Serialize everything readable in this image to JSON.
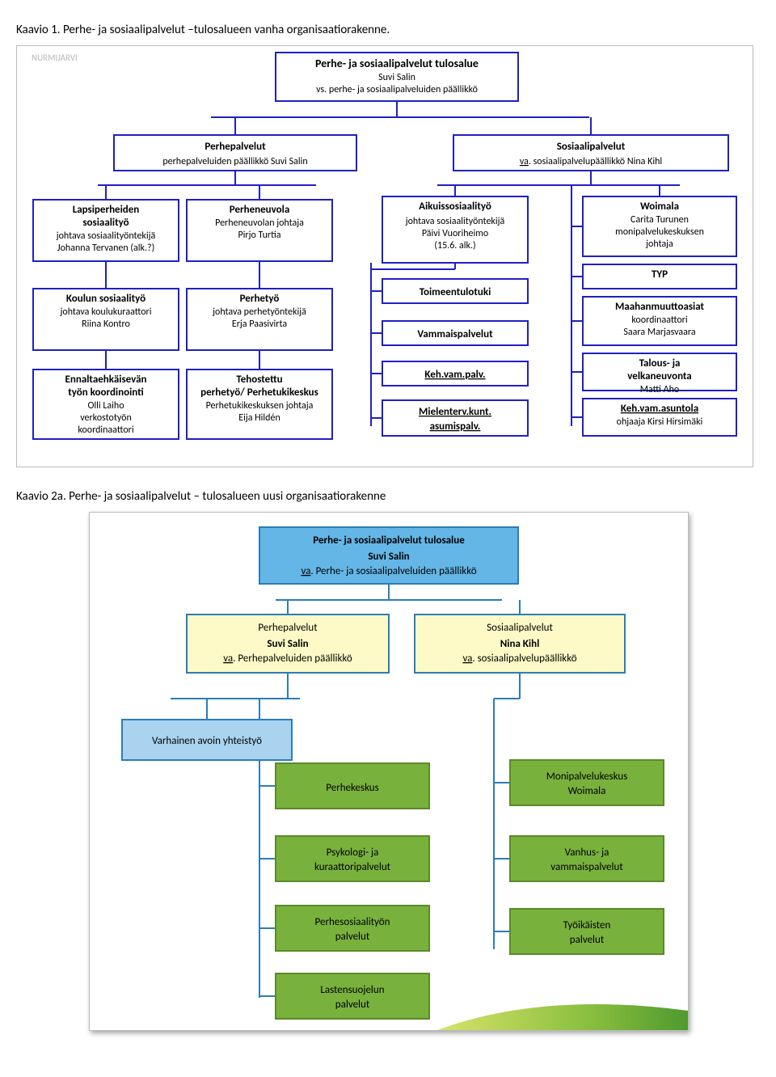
{
  "caption1": "Kaavio 1. Perhe- ja sosiaalipalvelut –tulosalueen vanha organisaatiorakenne.",
  "caption2": "Kaavio 2a. Perhe- ja sosiaalipalvelut – tulosalueen uusi organisaatiorakenne",
  "chart1": {
    "colors": {
      "border": "#2020c0",
      "fill": "#ffffff",
      "text": "#000000",
      "line": "#2020c0",
      "outerBorder": "#bbbbbb"
    },
    "fontsize": {
      "title": 14,
      "heading": 13,
      "body": 12
    },
    "corner_text": "NURMIJARVI",
    "root": {
      "title": "Perhe- ja sosiaalipalvelut tulosalue",
      "line2": "Suvi Salin",
      "line3": "vs. perhe- ja sosiaalipalveluiden päällikkö"
    },
    "level2": [
      {
        "title": "Perhepalvelut",
        "line2": "perhepalveluiden päällikkö Suvi Salin"
      },
      {
        "title": "Sosiaalipalvelut",
        "line2_pre": "va",
        "line2_post": ". sosiaalipalvelupäällikkö Nina Kihl"
      }
    ],
    "col1": [
      {
        "title": "Lapsiperheiden sosiaalityö",
        "l1": "johtava sosiaalityöntekijä",
        "l2": "Johanna Tervanen (alk.?)"
      },
      {
        "title": "Koulun sosiaalityö",
        "l1": "johtava koulukuraattori",
        "l2": "Riina Kontro"
      },
      {
        "title": "Ennaltaehkäisevän työn koordinointi",
        "l1": "Olli Laiho",
        "l2": "verkostotyön",
        "l3": "koordinaattori"
      }
    ],
    "col2": [
      {
        "title": "Perheneuvola",
        "l1": "Perheneuvolan johtaja",
        "l2": "Pirjo Turtia"
      },
      {
        "title": "Perhetyö",
        "l1": "johtava perhetyöntekijä",
        "l2": "Erja Paasivirta"
      },
      {
        "title": "Tehostettu perhetyö/ Perhetukikeskus",
        "l1": "Perhetukikeskuksen johtaja",
        "l2": "Eija Hildén"
      }
    ],
    "col3top": {
      "title": "Aikuissosiaalityö",
      "l1": "johtava sosiaalityöntekijä",
      "l2": "Päivi Vuoriheimo",
      "l3": "(15.6. alk.)"
    },
    "col3list": [
      "Toimeentulotuki",
      "Vammaispalvelut",
      "Keh.vam.palv.",
      "Mielenterv.kunt. asumispalv."
    ],
    "col4": [
      {
        "title": "Woimala",
        "l1": "Carita Turunen",
        "l2": "monipalvelukeskuksen",
        "l3": "johtaja"
      },
      {
        "title": "TYP"
      },
      {
        "title": "Maahanmuuttoasiat",
        "l1": "koordinaattori",
        "l2": "Saara Marjasvaara"
      },
      {
        "title": "Talous- ja velkaneuvonta",
        "l1": "Matti Aho"
      },
      {
        "title": "Keh.vam.asuntola",
        "l1": "ohjaaja Kirsi Hirsimäki"
      }
    ]
  },
  "chart2": {
    "colors": {
      "rootFill": "#63b6e6",
      "rootBorder": "#2b7db8",
      "midFill": "#fdfac7",
      "midBorder": "#2b7db8",
      "lightFill": "#a9d3ef",
      "lightBorder": "#2b7db8",
      "greenFill": "#79b13d",
      "greenBorder": "#5a8a2a",
      "line": "#2b7db8",
      "text": "#000000",
      "outerBorder": "#333333"
    },
    "fontsize": {
      "body": 13,
      "title": 13
    },
    "root": {
      "title": "Perhe- ja sosiaalipalvelut tulosalue",
      "l1": "Suvi Salin",
      "l2_pre": "va",
      "l2_post": ". Perhe- ja sosiaalipalveluiden päällikkö"
    },
    "mid": [
      {
        "t": "Perhepalvelut",
        "l1": "Suvi Salin",
        "l2_pre": "va",
        "l2_post": ". Perhepalveluiden päällikkö"
      },
      {
        "t": "Sosiaalipalvelut",
        "l1": "Nina Kihl",
        "l2_pre": "va",
        "l2_post": ". sosiaalipalvelupäällikkö"
      }
    ],
    "left_light": "Varhainen avoin yhteistyö",
    "leftGreen": [
      "Perhekeskus",
      "Psykologi- ja kuraattoripalvelut",
      "Perhesosiaalityön palvelut",
      "Lastensuojelun palvelut"
    ],
    "rightGreen": [
      "Monipalvelukeskus Woimala",
      "Vanhus- ja vammaispalvelut",
      "Työikäisten palvelut"
    ]
  }
}
